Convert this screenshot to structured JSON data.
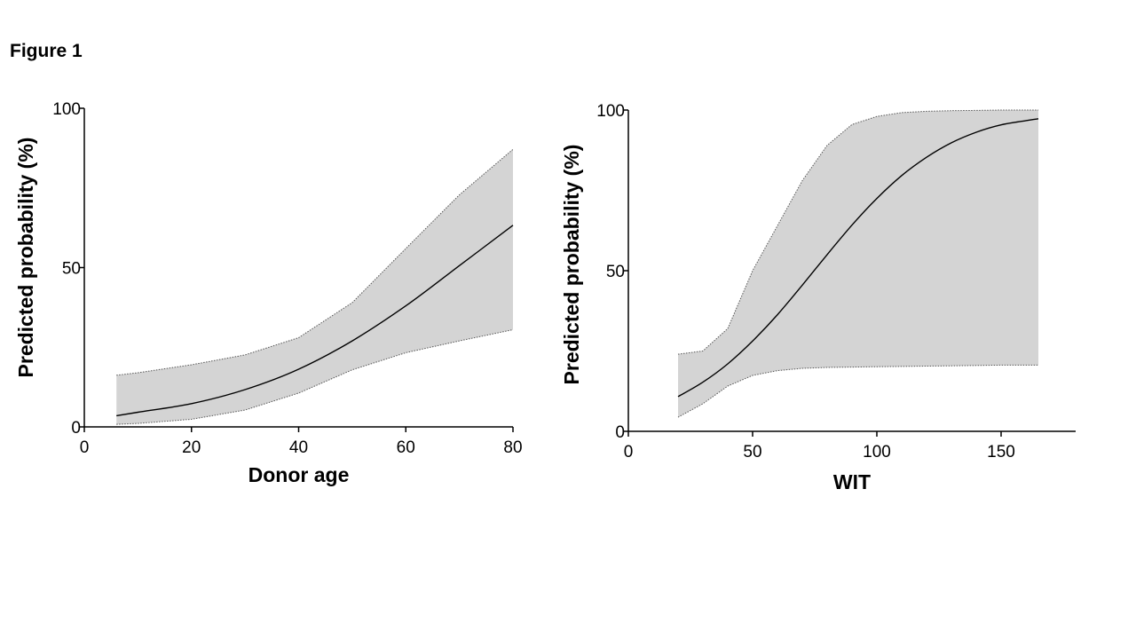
{
  "figure_label": "Figure 1",
  "colors": {
    "band_fill": "#d4d4d4",
    "line": "#000000"
  },
  "chart_data": [
    {
      "type": "line",
      "xlabel": "Donor age",
      "ylabel": "Predicted probability (%)",
      "xlim": [
        0,
        80
      ],
      "ylim": [
        0,
        100
      ],
      "xticks": [
        0,
        20,
        40,
        60,
        80
      ],
      "yticks": [
        0,
        50,
        100
      ],
      "grid": false,
      "x": [
        6,
        10,
        20,
        30,
        40,
        50,
        60,
        70,
        80
      ],
      "y": [
        3.5,
        4.6,
        7.3,
        11.7,
        18.1,
        27.0,
        38.0,
        50.6,
        63.3
      ],
      "lower": [
        0.8,
        1.1,
        2.4,
        5.3,
        10.6,
        17.9,
        23.3,
        27.0,
        30.5
      ],
      "upper": [
        16.2,
        17.0,
        19.5,
        22.6,
        28.0,
        39.0,
        56.0,
        72.8,
        87.1
      ]
    },
    {
      "type": "line",
      "xlabel": "WIT",
      "ylabel": "Predicted probability (%)",
      "xlim": [
        0,
        180
      ],
      "ylim": [
        0,
        100
      ],
      "xticks": [
        0,
        50,
        100,
        150
      ],
      "yticks": [
        0,
        50,
        100
      ],
      "grid": false,
      "x": [
        20,
        30,
        40,
        50,
        60,
        70,
        80,
        90,
        100,
        110,
        120,
        130,
        140,
        150,
        160,
        165
      ],
      "y": [
        10.8,
        15.3,
        21.0,
        28.1,
        36.3,
        45.5,
        55.0,
        64.2,
        72.5,
        79.6,
        85.3,
        89.8,
        93.1,
        95.4,
        96.7,
        97.3
      ],
      "lower": [
        4.4,
        8.6,
        14.1,
        17.4,
        18.9,
        19.6,
        19.9,
        20.0,
        20.1,
        20.2,
        20.3,
        20.4,
        20.5,
        20.6,
        20.6,
        20.6
      ],
      "upper": [
        24.0,
        25.0,
        32.0,
        50.0,
        64.0,
        78.0,
        89.0,
        95.5,
        98.0,
        99.2,
        99.6,
        99.8,
        99.9,
        100.0,
        100.0,
        100.0
      ]
    }
  ]
}
